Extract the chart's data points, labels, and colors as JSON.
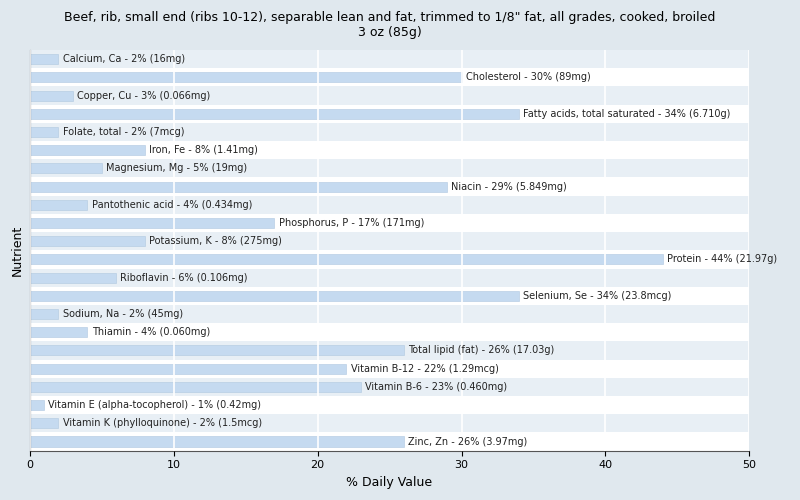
{
  "title": "Beef, rib, small end (ribs 10-12), separable lean and fat, trimmed to 1/8\" fat, all grades, cooked, broiled\n3 oz (85g)",
  "xlabel": "% Daily Value",
  "ylabel": "Nutrient",
  "background_color": "#dce8f0",
  "bar_color": "#c5daf0",
  "bar_edge_color": "#b0c8e0",
  "plot_bg": "#f0f4f8",
  "xlim": [
    0,
    50
  ],
  "nutrients": [
    {
      "label": "Calcium, Ca - 2% (16mg)",
      "value": 2
    },
    {
      "label": "Cholesterol - 30% (89mg)",
      "value": 30
    },
    {
      "label": "Copper, Cu - 3% (0.066mg)",
      "value": 3
    },
    {
      "label": "Fatty acids, total saturated - 34% (6.710g)",
      "value": 34
    },
    {
      "label": "Folate, total - 2% (7mcg)",
      "value": 2
    },
    {
      "label": "Iron, Fe - 8% (1.41mg)",
      "value": 8
    },
    {
      "label": "Magnesium, Mg - 5% (19mg)",
      "value": 5
    },
    {
      "label": "Niacin - 29% (5.849mg)",
      "value": 29
    },
    {
      "label": "Pantothenic acid - 4% (0.434mg)",
      "value": 4
    },
    {
      "label": "Phosphorus, P - 17% (171mg)",
      "value": 17
    },
    {
      "label": "Potassium, K - 8% (275mg)",
      "value": 8
    },
    {
      "label": "Protein - 44% (21.97g)",
      "value": 44
    },
    {
      "label": "Riboflavin - 6% (0.106mg)",
      "value": 6
    },
    {
      "label": "Selenium, Se - 34% (23.8mcg)",
      "value": 34
    },
    {
      "label": "Sodium, Na - 2% (45mg)",
      "value": 2
    },
    {
      "label": "Thiamin - 4% (0.060mg)",
      "value": 4
    },
    {
      "label": "Total lipid (fat) - 26% (17.03g)",
      "value": 26
    },
    {
      "label": "Vitamin B-12 - 22% (1.29mcg)",
      "value": 22
    },
    {
      "label": "Vitamin B-6 - 23% (0.460mg)",
      "value": 23
    },
    {
      "label": "Vitamin E (alpha-tocopherol) - 1% (0.42mg)",
      "value": 1
    },
    {
      "label": "Vitamin K (phylloquinone) - 2% (1.5mcg)",
      "value": 2
    },
    {
      "label": "Zinc, Zn - 26% (3.97mg)",
      "value": 26
    }
  ]
}
